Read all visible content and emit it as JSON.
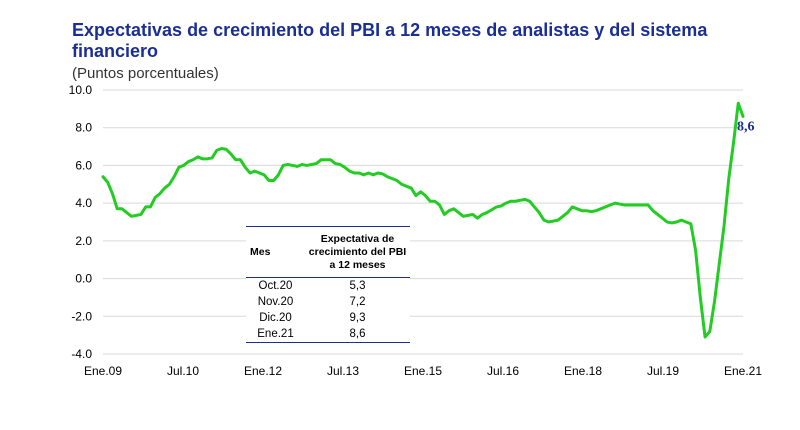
{
  "header": {
    "title": "Expectativas de crecimiento del PBI a 12 meses de analistas y del sistema financiero",
    "subtitle": "(Puntos porcentuales)"
  },
  "table": {
    "headers": [
      "Mes",
      "Expectativa de crecimiento del PBI a 12 meses"
    ],
    "rows": [
      [
        "Oct.20",
        "5,3"
      ],
      [
        "Nov.20",
        "7,2"
      ],
      [
        "Dic.20",
        "9,3"
      ],
      [
        "Ene.21",
        "8,6"
      ]
    ]
  },
  "chart_data": {
    "type": "line",
    "title": "Expectativas de crecimiento del PBI a 12 meses de analistas y del sistema financiero",
    "ylabel": "(Puntos porcentuales)",
    "ylim": [
      -4,
      10
    ],
    "yticks": [
      "10.0",
      "8.0",
      "6.0",
      "4.0",
      "2.0",
      "0.0",
      "-2.0",
      "-4.0"
    ],
    "xtick_labels": [
      "Ene.09",
      "Jul.10",
      "Ene.12",
      "Jul.13",
      "Ene.15",
      "Jul.16",
      "Ene.18",
      "Jul.19",
      "Ene.21"
    ],
    "grid": true,
    "line_color": "#22cc22",
    "end_label": "8,6",
    "x_start": "Ene.09",
    "x_end": "Ene.21",
    "frequency": "monthly",
    "values": [
      5.4,
      5.1,
      4.5,
      3.7,
      3.7,
      3.5,
      3.3,
      3.35,
      3.4,
      3.8,
      3.8,
      4.3,
      4.5,
      4.8,
      5.0,
      5.4,
      5.9,
      6.0,
      6.2,
      6.3,
      6.45,
      6.35,
      6.35,
      6.4,
      6.8,
      6.9,
      6.85,
      6.6,
      6.3,
      6.3,
      5.9,
      5.6,
      5.7,
      5.6,
      5.5,
      5.2,
      5.2,
      5.5,
      6.0,
      6.05,
      6.0,
      5.95,
      6.05,
      6.0,
      6.05,
      6.1,
      6.3,
      6.3,
      6.3,
      6.1,
      6.05,
      5.9,
      5.7,
      5.6,
      5.6,
      5.5,
      5.6,
      5.5,
      5.6,
      5.55,
      5.4,
      5.3,
      5.2,
      5.0,
      4.9,
      4.8,
      4.4,
      4.6,
      4.4,
      4.1,
      4.1,
      3.9,
      3.4,
      3.6,
      3.7,
      3.5,
      3.3,
      3.35,
      3.4,
      3.2,
      3.4,
      3.5,
      3.65,
      3.8,
      3.85,
      4.0,
      4.1,
      4.1,
      4.15,
      4.2,
      4.1,
      3.8,
      3.5,
      3.1,
      3.0,
      3.05,
      3.1,
      3.3,
      3.5,
      3.8,
      3.7,
      3.6,
      3.6,
      3.55,
      3.6,
      3.7,
      3.8,
      3.9,
      4.0,
      3.95,
      3.9,
      3.9,
      3.9,
      3.9,
      3.9,
      3.9,
      3.6,
      3.4,
      3.2,
      3.0,
      2.95,
      3.0,
      3.1,
      3.0,
      2.9,
      1.5,
      -1.0,
      -3.1,
      -2.8,
      -1.2,
      0.8,
      2.8,
      5.3,
      7.2,
      9.3,
      8.6
    ]
  }
}
